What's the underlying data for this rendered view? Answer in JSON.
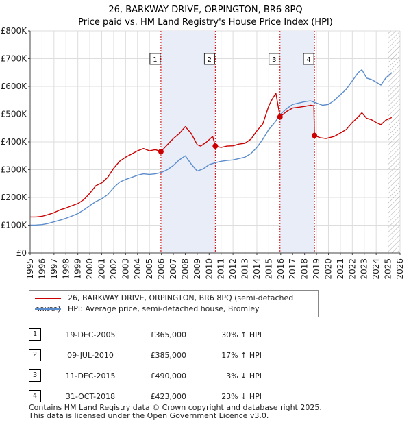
{
  "chart_data": {
    "type": "line",
    "title": "26, BARKWAY DRIVE, ORPINGTON, BR6 8PQ",
    "subtitle": "Price paid vs. HM Land Registry's House Price Index (HPI)",
    "xlim": [
      1995,
      2026
    ],
    "ylim": [
      0,
      800000
    ],
    "x_ticks": [
      "1995",
      "1996",
      "1997",
      "1998",
      "1999",
      "2000",
      "2001",
      "2002",
      "2003",
      "2004",
      "2005",
      "2006",
      "2007",
      "2008",
      "2009",
      "2010",
      "2011",
      "2012",
      "2013",
      "2014",
      "2015",
      "2016",
      "2017",
      "2018",
      "2019",
      "2020",
      "2021",
      "2022",
      "2023",
      "2024",
      "2025",
      "2026"
    ],
    "y_ticks": [
      {
        "value": 0,
        "label": "£0"
      },
      {
        "value": 100000,
        "label": "£100K"
      },
      {
        "value": 200000,
        "label": "£200K"
      },
      {
        "value": 300000,
        "label": "£300K"
      },
      {
        "value": 400000,
        "label": "£400K"
      },
      {
        "value": 500000,
        "label": "£500K"
      },
      {
        "value": 600000,
        "label": "£600K"
      },
      {
        "value": 700000,
        "label": "£700K"
      },
      {
        "value": 800000,
        "label": "£800K"
      }
    ],
    "shaded_periods": [
      {
        "start": 2005.96,
        "end": 2010.52
      },
      {
        "start": 2015.94,
        "end": 2018.83
      }
    ],
    "forecast_start": 2025.0,
    "series": [
      {
        "name": "26, BARKWAY DRIVE, ORPINGTON, BR6 8PQ (semi-detached house)",
        "color": "#cc0000",
        "x": [
          1995.0,
          1995.5,
          1996.0,
          1996.5,
          1997.0,
          1997.5,
          1998.0,
          1998.5,
          1999.0,
          1999.5,
          2000.0,
          2000.5,
          2001.0,
          2001.5,
          2002.0,
          2002.5,
          2003.0,
          2003.5,
          2004.0,
          2004.5,
          2005.0,
          2005.5,
          2005.96,
          2006.5,
          2007.0,
          2007.5,
          2008.0,
          2008.5,
          2009.0,
          2009.3,
          2009.8,
          2010.3,
          2010.52,
          2011.0,
          2011.5,
          2012.0,
          2012.5,
          2013.0,
          2013.5,
          2014.0,
          2014.5,
          2015.0,
          2015.3,
          2015.6,
          2015.94,
          2016.5,
          2017.0,
          2017.5,
          2018.0,
          2018.5,
          2018.78,
          2018.83,
          2019.3,
          2019.8,
          2020.5,
          2021.0,
          2021.5,
          2022.0,
          2022.5,
          2022.8,
          2023.2,
          2023.6,
          2024.0,
          2024.4,
          2024.8,
          2025.3
        ],
        "values": [
          130000,
          130000,
          132000,
          138000,
          145000,
          155000,
          162000,
          170000,
          178000,
          192000,
          215000,
          242000,
          252000,
          272000,
          305000,
          330000,
          345000,
          356000,
          368000,
          376000,
          368000,
          372000,
          365000,
          390000,
          412000,
          430000,
          455000,
          430000,
          390000,
          385000,
          400000,
          420000,
          385000,
          380000,
          385000,
          386000,
          392000,
          395000,
          410000,
          440000,
          465000,
          530000,
          555000,
          575000,
          490000,
          510000,
          522000,
          525000,
          528000,
          532000,
          530000,
          423000,
          415000,
          412000,
          420000,
          432000,
          445000,
          470000,
          490000,
          505000,
          485000,
          480000,
          470000,
          462000,
          478000,
          488000
        ]
      },
      {
        "name": "HPI: Average price, semi-detached house, Bromley",
        "color": "#5b8ccb",
        "x": [
          1995.0,
          1995.5,
          1996.0,
          1996.5,
          1997.0,
          1997.5,
          1998.0,
          1998.5,
          1999.0,
          1999.5,
          2000.0,
          2000.5,
          2001.0,
          2001.5,
          2002.0,
          2002.5,
          2003.0,
          2003.5,
          2004.0,
          2004.5,
          2005.0,
          2005.5,
          2006.0,
          2006.5,
          2007.0,
          2007.5,
          2008.0,
          2008.5,
          2009.0,
          2009.5,
          2010.0,
          2010.5,
          2011.0,
          2011.5,
          2012.0,
          2012.5,
          2013.0,
          2013.5,
          2014.0,
          2014.5,
          2015.0,
          2015.5,
          2016.0,
          2016.5,
          2017.0,
          2017.5,
          2018.0,
          2018.5,
          2019.0,
          2019.5,
          2020.0,
          2020.5,
          2021.0,
          2021.5,
          2022.0,
          2022.5,
          2022.8,
          2023.2,
          2023.6,
          2024.0,
          2024.4,
          2024.8,
          2025.3
        ],
        "values": [
          100000,
          100500,
          102000,
          106000,
          112000,
          118000,
          125000,
          133000,
          142000,
          155000,
          170000,
          185000,
          195000,
          210000,
          235000,
          255000,
          265000,
          272000,
          280000,
          285000,
          283000,
          285000,
          290000,
          300000,
          315000,
          335000,
          350000,
          320000,
          295000,
          303000,
          318000,
          325000,
          330000,
          333000,
          335000,
          340000,
          345000,
          358000,
          380000,
          410000,
          445000,
          470000,
          500000,
          520000,
          535000,
          540000,
          545000,
          548000,
          540000,
          532000,
          535000,
          550000,
          570000,
          590000,
          620000,
          650000,
          660000,
          630000,
          625000,
          615000,
          605000,
          630000,
          650000
        ]
      }
    ],
    "markers": [
      {
        "label": "1",
        "x": 2005.96,
        "y": 365000
      },
      {
        "label": "2",
        "x": 2010.52,
        "y": 385000
      },
      {
        "label": "3",
        "x": 2015.94,
        "y": 490000
      },
      {
        "label": "4",
        "x": 2018.83,
        "y": 423000
      }
    ]
  },
  "legend": {
    "property_label": "26, BARKWAY DRIVE, ORPINGTON, BR6 8PQ (semi-detached house)",
    "hpi_label": "HPI: Average price, semi-detached house, Bromley",
    "property_color": "#cc0000",
    "hpi_color": "#5b8ccb"
  },
  "transactions": [
    {
      "num": "1",
      "date": "19-DEC-2005",
      "price": "£365,000",
      "hpi": "30% ↑ HPI"
    },
    {
      "num": "2",
      "date": "09-JUL-2010",
      "price": "£385,000",
      "hpi": "17% ↑ HPI"
    },
    {
      "num": "3",
      "date": "11-DEC-2015",
      "price": "£490,000",
      "hpi": "3% ↓ HPI"
    },
    {
      "num": "4",
      "date": "31-OCT-2018",
      "price": "£423,000",
      "hpi": "23% ↓ HPI"
    }
  ],
  "footer": {
    "line1": "Contains HM Land Registry data © Crown copyright and database right 2025.",
    "line2": "This data is licensed under the Open Government Licence v3.0."
  }
}
